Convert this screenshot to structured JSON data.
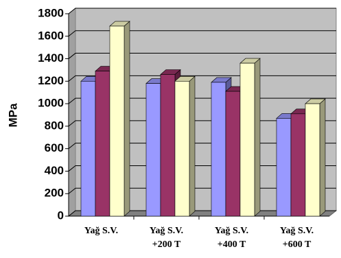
{
  "chart_data": {
    "type": "bar3d",
    "y_label": "MPa",
    "categories": [
      "Yağ S.V.",
      "Yağ S.V.\n+200 T",
      "Yağ S.V.\n+400 T",
      "Yağ S.V.\n+600 T"
    ],
    "series": [
      {
        "color": "#9999ff",
        "values": [
          1200,
          1180,
          1190,
          870
        ]
      },
      {
        "color": "#993366",
        "values": [
          1290,
          1260,
          1110,
          910
        ]
      },
      {
        "color": "#ffffcc",
        "values": [
          1690,
          1200,
          1360,
          1000
        ]
      }
    ],
    "ylim": [
      0,
      1800
    ],
    "yticks": [
      0,
      200,
      400,
      600,
      800,
      1000,
      1200,
      1400,
      1600,
      1800
    ],
    "grid": true
  }
}
